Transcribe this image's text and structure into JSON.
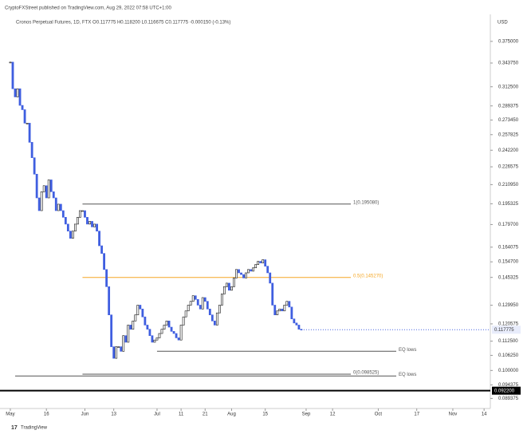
{
  "chart_data": {
    "type": "candlestick",
    "title": "CryptoFXStreet published on TradingView.com, Aug 29, 2022 07:58 UTC+1:00",
    "subtitle": "Cronos Perpetual Futures, 1D, FTX  O0.117775 H0.118200 L0.116675 C0.117775 -0.000150 (-0.13%)",
    "currency": "USD",
    "footer": "TradingView",
    "scale": "log",
    "up_color": "#111111",
    "down_color": "#3f5ee0",
    "values": [
      0.345,
      0.31,
      0.3,
      0.31,
      0.29,
      0.285,
      0.27,
      0.27,
      0.25,
      0.235,
      0.22,
      0.2,
      0.19,
      0.205,
      0.21,
      0.2,
      0.215,
      0.205,
      0.2,
      0.19,
      0.195,
      0.19,
      0.185,
      0.18,
      0.175,
      0.17,
      0.175,
      0.18,
      0.185,
      0.19,
      0.19,
      0.185,
      0.18,
      0.182,
      0.178,
      0.18,
      0.175,
      0.165,
      0.16,
      0.15,
      0.14,
      0.125,
      0.11,
      0.105,
      0.11,
      0.11,
      0.108,
      0.115,
      0.112,
      0.12,
      0.118,
      0.122,
      0.125,
      0.13,
      0.128,
      0.124,
      0.12,
      0.118,
      0.115,
      0.112,
      0.113,
      0.114,
      0.116,
      0.118,
      0.12,
      0.122,
      0.119,
      0.117,
      0.116,
      0.114,
      0.113,
      0.12,
      0.124,
      0.127,
      0.13,
      0.132,
      0.135,
      0.133,
      0.13,
      0.128,
      0.134,
      0.132,
      0.128,
      0.125,
      0.122,
      0.12,
      0.126,
      0.13,
      0.136,
      0.14,
      0.142,
      0.138,
      0.14,
      0.145,
      0.15,
      0.148,
      0.147,
      0.145,
      0.148,
      0.15,
      0.149,
      0.151,
      0.153,
      0.155,
      0.154,
      0.156,
      0.152,
      0.148,
      0.142,
      0.13,
      0.125,
      0.127,
      0.128,
      0.127,
      0.13,
      0.132,
      0.129,
      0.123,
      0.121,
      0.12,
      0.118,
      0.117775
    ],
    "xlim": [
      -4.3,
      199.6
    ],
    "xticks": [
      {
        "value": 0,
        "label": "May"
      },
      {
        "value": 15,
        "label": "16"
      },
      {
        "value": 31,
        "label": "Jun"
      },
      {
        "value": 43,
        "label": "13"
      },
      {
        "value": 61,
        "label": "Jul"
      },
      {
        "value": 71,
        "label": "11"
      },
      {
        "value": 81,
        "label": "21"
      },
      {
        "value": 92,
        "label": "Aug"
      },
      {
        "value": 106,
        "label": "15"
      },
      {
        "value": 123,
        "label": "Sep"
      },
      {
        "value": 134,
        "label": "12"
      },
      {
        "value": 153,
        "label": "Oct"
      },
      {
        "value": 169,
        "label": "17"
      },
      {
        "value": 184,
        "label": "Nov"
      },
      {
        "value": 197,
        "label": "14"
      }
    ],
    "ylim": [
      0.0875,
      0.41
    ],
    "yticks": [
      {
        "value": 0.375,
        "label": "0.375000"
      },
      {
        "value": 0.34375,
        "label": "0.343750"
      },
      {
        "value": 0.3125,
        "label": "0.312500"
      },
      {
        "value": 0.289375,
        "label": "0.289375"
      },
      {
        "value": 0.27345,
        "label": "0.273450"
      },
      {
        "value": 0.257825,
        "label": "0.257825"
      },
      {
        "value": 0.2422,
        "label": "0.242200"
      },
      {
        "value": 0.226575,
        "label": "0.226575"
      },
      {
        "value": 0.21095,
        "label": "0.210950"
      },
      {
        "value": 0.195325,
        "label": "0.195325"
      },
      {
        "value": 0.1797,
        "label": "0.179700"
      },
      {
        "value": 0.164075,
        "label": "0.164075"
      },
      {
        "value": 0.1547,
        "label": "0.154700"
      },
      {
        "value": 0.145325,
        "label": "0.145325"
      },
      {
        "value": 0.12995,
        "label": "0.129950"
      },
      {
        "value": 0.120575,
        "label": "0.120575"
      },
      {
        "value": 0.1125,
        "label": "0.112500"
      },
      {
        "value": 0.10625,
        "label": "0.106250"
      },
      {
        "value": 0.1,
        "label": "0.100000"
      },
      {
        "value": 0.094375,
        "label": "0.094375"
      },
      {
        "value": 0.089375,
        "label": "0.089375"
      }
    ],
    "last_price": {
      "value": 0.117775,
      "label": "0.117775"
    },
    "marked_level": {
      "value": 0.0922,
      "label": "0.092200"
    },
    "levels": [
      {
        "label": "1(0.195080)",
        "value": 0.19508,
        "start": 30,
        "color": "#555555"
      },
      {
        "label": "0.5(0.145270)",
        "value": 0.14527,
        "start": 30,
        "color": "#f5a623"
      },
      {
        "label": "0(0.098525)",
        "value": 0.098525,
        "start": 30,
        "color": "#555555"
      },
      {
        "label": "EQ lows",
        "value": 0.108,
        "start": 61,
        "color": "#555555"
      },
      {
        "label": "EQ lows",
        "value": 0.0978,
        "start": 2,
        "color": "#555555"
      }
    ]
  }
}
